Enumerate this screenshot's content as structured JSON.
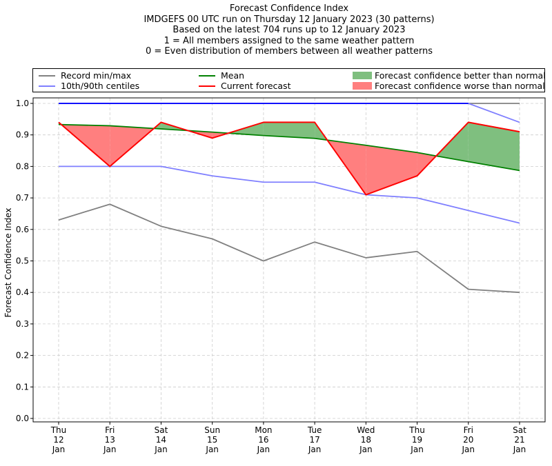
{
  "title_lines": [
    "Forecast Confidence Index",
    "IMDGEFS 00 UTC run on Thursday 12 January 2023 (30 patterns)",
    "Based on the latest 704 runs up to 12 January 2023",
    "1 = All members assigned to the same weather pattern",
    "0 = Even distribution of members between all weather patterns"
  ],
  "legend": [
    {
      "label": "Record min/max",
      "kind": "line",
      "color": "#808080"
    },
    {
      "label": "Mean",
      "kind": "line",
      "color": "#008000"
    },
    {
      "label": "Forecast confidence better than normal",
      "kind": "patch",
      "color": "#7fbf7f"
    },
    {
      "label": "10th/90th centiles",
      "kind": "line",
      "color": "#7f7fff"
    },
    {
      "label": "Current forecast",
      "kind": "line",
      "color": "#ff0000"
    },
    {
      "label": "Forecast confidence worse than normal",
      "kind": "patch",
      "color": "#ff7f7f"
    }
  ],
  "colors": {
    "record": "#808080",
    "centile": "#7f7fff",
    "mean": "#008000",
    "forecast": "#ff0000",
    "better": "#7fbf7f",
    "worse": "#ff7f7f",
    "record_max": "#0000ff",
    "grid": "#cccccc"
  },
  "chart_data": {
    "type": "line",
    "title": "Forecast Confidence Index",
    "ylabel": "Forecast Confidence Index",
    "xlabel": "",
    "ylim": [
      0,
      1
    ],
    "yticks": [
      "0.0",
      "0.1",
      "0.2",
      "0.3",
      "0.4",
      "0.5",
      "0.6",
      "0.7",
      "0.8",
      "0.9",
      "1.0"
    ],
    "grid": true,
    "legend_position": "top",
    "categories": [
      [
        "Thu",
        "12",
        "Jan"
      ],
      [
        "Fri",
        "13",
        "Jan"
      ],
      [
        "Sat",
        "14",
        "Jan"
      ],
      [
        "Sun",
        "15",
        "Jan"
      ],
      [
        "Mon",
        "16",
        "Jan"
      ],
      [
        "Tue",
        "17",
        "Jan"
      ],
      [
        "Wed",
        "18",
        "Jan"
      ],
      [
        "Thu",
        "19",
        "Jan"
      ],
      [
        "Fri",
        "20",
        "Jan"
      ],
      [
        "Sat",
        "21",
        "Jan"
      ]
    ],
    "series": [
      {
        "name": "Record min/max",
        "role": "record_min",
        "values": [
          0.63,
          0.68,
          0.61,
          0.57,
          0.5,
          0.56,
          0.51,
          0.53,
          0.41,
          0.4
        ]
      },
      {
        "name": "Record min/max",
        "role": "record_max",
        "values": [
          1.0,
          1.0,
          1.0,
          1.0,
          1.0,
          1.0,
          1.0,
          1.0,
          1.0,
          1.0
        ]
      },
      {
        "name": "10th/90th centiles",
        "role": "p10",
        "values": [
          0.8,
          0.8,
          0.8,
          0.77,
          0.75,
          0.75,
          0.71,
          0.7,
          0.66,
          0.62
        ]
      },
      {
        "name": "10th/90th centiles",
        "role": "p90",
        "values": [
          1.0,
          1.0,
          1.0,
          1.0,
          1.0,
          1.0,
          1.0,
          1.0,
          1.0,
          0.94
        ]
      },
      {
        "name": "Mean",
        "role": "mean",
        "values": [
          0.933,
          0.929,
          0.919,
          0.909,
          0.898,
          0.889,
          0.867,
          0.844,
          0.815,
          0.787
        ]
      },
      {
        "name": "Current forecast",
        "role": "forecast",
        "values": [
          0.94,
          0.8,
          0.94,
          0.89,
          0.94,
          0.94,
          0.71,
          0.77,
          0.94,
          0.91
        ]
      }
    ]
  }
}
